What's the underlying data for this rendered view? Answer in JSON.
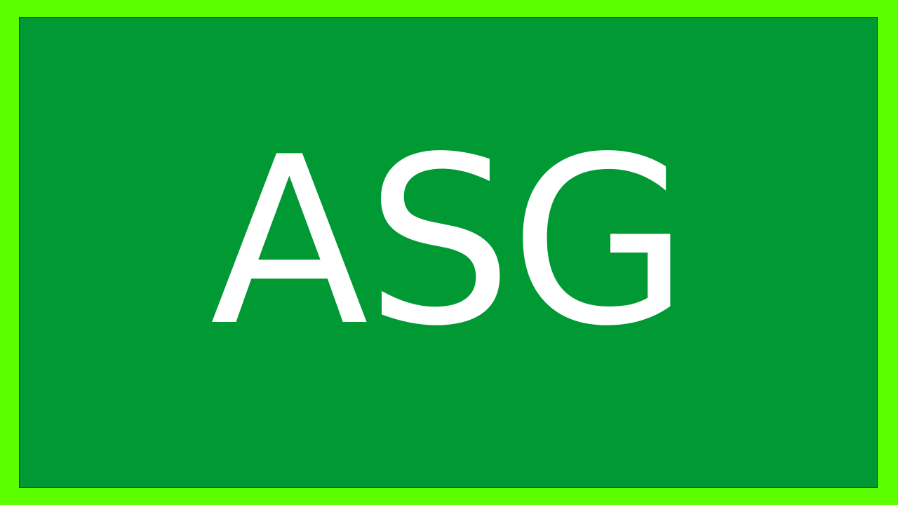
{
  "slide": {
    "title": "ASG"
  },
  "colors": {
    "outer_background": "#5cff00",
    "panel_background": "#009933",
    "text": "#ffffff"
  }
}
